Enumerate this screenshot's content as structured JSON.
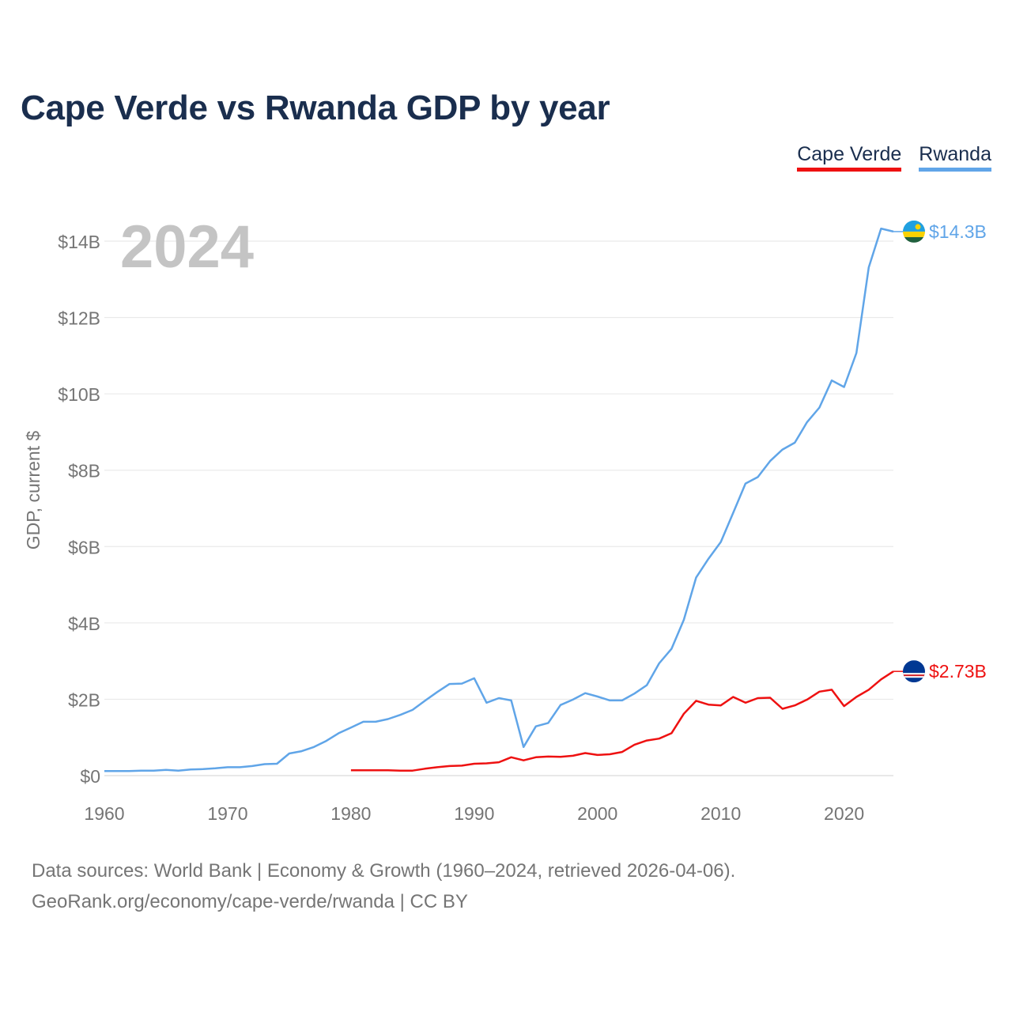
{
  "title": "Cape Verde vs Rwanda GDP by year",
  "legend": [
    {
      "label": "Cape Verde",
      "color": "#ee1111"
    },
    {
      "label": "Rwanda",
      "color": "#60a5e8"
    }
  ],
  "year_overlay": "2024",
  "footer": {
    "line1": "Data sources: World Bank | Economy & Growth (1960–2024, retrieved 2026-04-06).",
    "line2": "GeoRank.org/economy/cape-verde/rwanda | CC BY"
  },
  "chart_data": {
    "type": "line",
    "title": "Cape Verde vs Rwanda GDP by year",
    "xlabel": "",
    "ylabel": "GDP, current $",
    "xlim": [
      1960,
      2024
    ],
    "ylim": [
      0,
      14
    ],
    "x_ticks": [
      1960,
      1970,
      1980,
      1990,
      2000,
      2010,
      2020
    ],
    "y_ticks": [
      0,
      2,
      4,
      6,
      8,
      10,
      12,
      14
    ],
    "y_tick_labels": [
      "$0",
      "$2B",
      "$4B",
      "$6B",
      "$8B",
      "$10B",
      "$12B",
      "$14B"
    ],
    "grid": true,
    "units": "billions of current US$",
    "series": [
      {
        "name": "Rwanda",
        "color": "#60a5e8",
        "end_label": "$14.3B",
        "x": [
          1960,
          1961,
          1962,
          1963,
          1964,
          1965,
          1966,
          1967,
          1968,
          1969,
          1970,
          1971,
          1972,
          1973,
          1974,
          1975,
          1976,
          1977,
          1978,
          1979,
          1980,
          1981,
          1982,
          1983,
          1984,
          1985,
          1986,
          1987,
          1988,
          1989,
          1990,
          1991,
          1992,
          1993,
          1994,
          1995,
          1996,
          1997,
          1998,
          1999,
          2000,
          2001,
          2002,
          2003,
          2004,
          2005,
          2006,
          2007,
          2008,
          2009,
          2010,
          2011,
          2012,
          2013,
          2014,
          2015,
          2016,
          2017,
          2018,
          2019,
          2020,
          2021,
          2022,
          2023,
          2024
        ],
        "values": [
          0.12,
          0.12,
          0.12,
          0.13,
          0.13,
          0.15,
          0.13,
          0.16,
          0.17,
          0.19,
          0.22,
          0.22,
          0.25,
          0.3,
          0.31,
          0.58,
          0.64,
          0.75,
          0.91,
          1.11,
          1.26,
          1.41,
          1.41,
          1.48,
          1.59,
          1.72,
          1.96,
          2.19,
          2.4,
          2.41,
          2.55,
          1.91,
          2.03,
          1.97,
          0.75,
          1.29,
          1.38,
          1.85,
          1.99,
          2.16,
          2.07,
          1.97,
          1.97,
          2.15,
          2.37,
          2.94,
          3.32,
          4.08,
          5.19,
          5.68,
          6.12,
          6.88,
          7.65,
          7.82,
          8.24,
          8.54,
          8.72,
          9.26,
          9.64,
          10.35,
          10.18,
          11.07,
          13.31,
          14.33,
          14.25
        ]
      },
      {
        "name": "Cape Verde",
        "color": "#ee1111",
        "end_label": "$2.73B",
        "x": [
          1980,
          1981,
          1982,
          1983,
          1984,
          1985,
          1986,
          1987,
          1988,
          1989,
          1990,
          1991,
          1992,
          1993,
          1994,
          1995,
          1996,
          1997,
          1998,
          1999,
          2000,
          2001,
          2002,
          2003,
          2004,
          2005,
          2006,
          2007,
          2008,
          2009,
          2010,
          2011,
          2012,
          2013,
          2014,
          2015,
          2016,
          2017,
          2018,
          2019,
          2020,
          2021,
          2022,
          2023,
          2024
        ],
        "values": [
          0.14,
          0.14,
          0.14,
          0.14,
          0.13,
          0.13,
          0.18,
          0.22,
          0.25,
          0.26,
          0.31,
          0.32,
          0.35,
          0.48,
          0.4,
          0.48,
          0.5,
          0.49,
          0.52,
          0.59,
          0.54,
          0.56,
          0.62,
          0.81,
          0.92,
          0.97,
          1.11,
          1.62,
          1.96,
          1.86,
          1.84,
          2.06,
          1.91,
          2.03,
          2.04,
          1.75,
          1.84,
          1.99,
          2.2,
          2.25,
          1.82,
          2.06,
          2.25,
          2.52,
          2.73
        ]
      }
    ]
  }
}
